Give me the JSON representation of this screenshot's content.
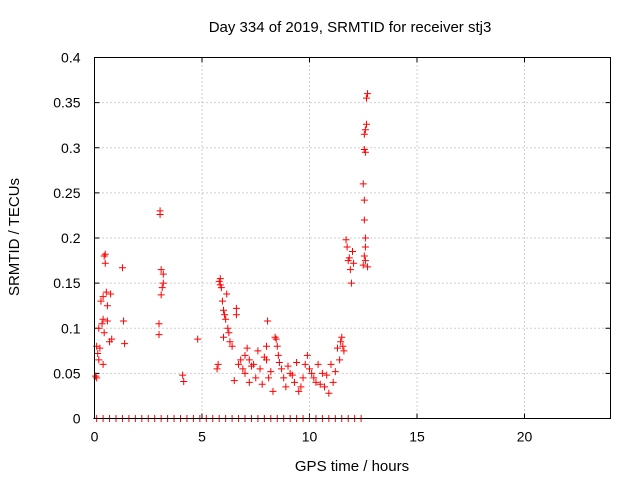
{
  "chart_data": {
    "type": "scatter",
    "title": "Day 334 of 2019, SRMTID for receiver stj3",
    "xlabel": "GPS time / hours",
    "ylabel": "SRMTID / TECUs",
    "xlim": [
      0,
      24
    ],
    "ylim": [
      0,
      0.4
    ],
    "grid": true,
    "marker": "+",
    "color": "#ff0000",
    "xticks": [
      0,
      5,
      10,
      15,
      20
    ],
    "yticks": [
      0,
      0.05,
      0.1,
      0.15,
      0.2,
      0.25,
      0.3,
      0.35,
      0.4
    ],
    "xtick_labels": [
      "0",
      "5",
      "10",
      "15",
      "20"
    ],
    "ytick_labels": [
      "0",
      "0.05",
      "0.1",
      "0.15",
      "0.2",
      "0.25",
      "0.3",
      "0.35",
      "0.4"
    ],
    "series": [
      {
        "name": "SRMTID",
        "points": [
          [
            0.05,
            0.047
          ],
          [
            0.1,
            0.045
          ],
          [
            0.1,
            0.08
          ],
          [
            0.15,
            0.072
          ],
          [
            0.2,
            0.065
          ],
          [
            0.2,
            0.1
          ],
          [
            0.25,
            0.078
          ],
          [
            0.3,
            0.13
          ],
          [
            0.35,
            0.105
          ],
          [
            0.4,
            0.11
          ],
          [
            0.4,
            0.135
          ],
          [
            0.45,
            0.095
          ],
          [
            0.45,
            0.18
          ],
          [
            0.5,
            0.182
          ],
          [
            0.5,
            0.172
          ],
          [
            0.55,
            0.14
          ],
          [
            0.6,
            0.108
          ],
          [
            0.6,
            0.125
          ],
          [
            0.7,
            0.085
          ],
          [
            0.75,
            0.138
          ],
          [
            0.8,
            0.088
          ],
          [
            0.4,
            0.06
          ],
          [
            1.3,
            0.167
          ],
          [
            1.35,
            0.108
          ],
          [
            1.4,
            0.083
          ],
          [
            3.0,
            0.105
          ],
          [
            3.0,
            0.093
          ],
          [
            3.05,
            0.23
          ],
          [
            3.05,
            0.226
          ],
          [
            3.1,
            0.137
          ],
          [
            3.1,
            0.165
          ],
          [
            3.15,
            0.145
          ],
          [
            3.2,
            0.16
          ],
          [
            3.2,
            0.15
          ],
          [
            4.1,
            0.048
          ],
          [
            4.15,
            0.041
          ],
          [
            4.8,
            0.088
          ],
          [
            5.7,
            0.055
          ],
          [
            5.75,
            0.06
          ],
          [
            5.8,
            0.152
          ],
          [
            5.85,
            0.155
          ],
          [
            5.85,
            0.148
          ],
          [
            5.9,
            0.145
          ],
          [
            5.95,
            0.13
          ],
          [
            6.0,
            0.12
          ],
          [
            6.0,
            0.09
          ],
          [
            6.05,
            0.115
          ],
          [
            6.1,
            0.11
          ],
          [
            6.15,
            0.138
          ],
          [
            6.2,
            0.1
          ],
          [
            6.25,
            0.095
          ],
          [
            6.3,
            0.085
          ],
          [
            6.4,
            0.08
          ],
          [
            6.5,
            0.042
          ],
          [
            6.6,
            0.115
          ],
          [
            6.6,
            0.122
          ],
          [
            6.7,
            0.06
          ],
          [
            6.8,
            0.065
          ],
          [
            6.9,
            0.055
          ],
          [
            7.0,
            0.07
          ],
          [
            7.0,
            0.05
          ],
          [
            7.1,
            0.078
          ],
          [
            7.2,
            0.065
          ],
          [
            7.2,
            0.04
          ],
          [
            7.3,
            0.058
          ],
          [
            7.4,
            0.06
          ],
          [
            7.5,
            0.045
          ],
          [
            7.6,
            0.075
          ],
          [
            7.7,
            0.055
          ],
          [
            7.8,
            0.038
          ],
          [
            7.9,
            0.068
          ],
          [
            8.0,
            0.065
          ],
          [
            8.0,
            0.08
          ],
          [
            8.05,
            0.108
          ],
          [
            8.1,
            0.045
          ],
          [
            8.2,
            0.052
          ],
          [
            8.3,
            0.03
          ],
          [
            8.4,
            0.09
          ],
          [
            8.45,
            0.088
          ],
          [
            8.5,
            0.08
          ],
          [
            8.55,
            0.07
          ],
          [
            8.6,
            0.062
          ],
          [
            8.7,
            0.055
          ],
          [
            8.8,
            0.045
          ],
          [
            8.9,
            0.035
          ],
          [
            9.0,
            0.058
          ],
          [
            9.1,
            0.05
          ],
          [
            9.2,
            0.048
          ],
          [
            9.3,
            0.04
          ],
          [
            9.4,
            0.062
          ],
          [
            9.5,
            0.03
          ],
          [
            9.6,
            0.035
          ],
          [
            9.7,
            0.045
          ],
          [
            9.8,
            0.06
          ],
          [
            9.9,
            0.07
          ],
          [
            10.0,
            0.055
          ],
          [
            10.1,
            0.05
          ],
          [
            10.2,
            0.045
          ],
          [
            10.3,
            0.04
          ],
          [
            10.4,
            0.06
          ],
          [
            10.5,
            0.038
          ],
          [
            10.6,
            0.05
          ],
          [
            10.7,
            0.035
          ],
          [
            10.8,
            0.048
          ],
          [
            10.9,
            0.028
          ],
          [
            11.0,
            0.06
          ],
          [
            11.1,
            0.04
          ],
          [
            11.2,
            0.052
          ],
          [
            11.3,
            0.078
          ],
          [
            11.4,
            0.065
          ],
          [
            11.45,
            0.085
          ],
          [
            11.5,
            0.09
          ],
          [
            11.55,
            0.08
          ],
          [
            11.6,
            0.075
          ],
          [
            11.7,
            0.198
          ],
          [
            11.75,
            0.19
          ],
          [
            11.8,
            0.175
          ],
          [
            11.85,
            0.178
          ],
          [
            11.9,
            0.165
          ],
          [
            11.95,
            0.15
          ],
          [
            12.0,
            0.185
          ],
          [
            12.05,
            0.172
          ],
          [
            12.5,
            0.17
          ],
          [
            12.55,
            0.18
          ],
          [
            12.6,
            0.19
          ],
          [
            12.6,
            0.2
          ],
          [
            12.6,
            0.175
          ],
          [
            12.55,
            0.22
          ],
          [
            12.5,
            0.26
          ],
          [
            12.55,
            0.242
          ],
          [
            12.55,
            0.298
          ],
          [
            12.6,
            0.295
          ],
          [
            12.55,
            0.315
          ],
          [
            12.6,
            0.32
          ],
          [
            12.65,
            0.326
          ],
          [
            12.65,
            0.355
          ],
          [
            12.7,
            0.36
          ],
          [
            12.7,
            0.168
          ],
          [
            0.1,
            0
          ],
          [
            0.4,
            0
          ],
          [
            0.7,
            0
          ],
          [
            1.0,
            0
          ],
          [
            1.3,
            0
          ],
          [
            1.6,
            0
          ],
          [
            1.9,
            0
          ],
          [
            2.2,
            0
          ],
          [
            2.5,
            0
          ],
          [
            2.8,
            0
          ],
          [
            3.1,
            0
          ],
          [
            3.4,
            0
          ],
          [
            3.7,
            0
          ],
          [
            4.0,
            0
          ],
          [
            4.3,
            0
          ],
          [
            4.6,
            0
          ],
          [
            4.9,
            0
          ],
          [
            5.2,
            0
          ],
          [
            5.5,
            0
          ],
          [
            5.8,
            0
          ],
          [
            6.1,
            0
          ],
          [
            6.4,
            0
          ],
          [
            6.7,
            0
          ],
          [
            7.0,
            0
          ],
          [
            7.3,
            0
          ],
          [
            7.6,
            0
          ],
          [
            7.9,
            0
          ],
          [
            8.2,
            0
          ],
          [
            8.5,
            0
          ],
          [
            8.8,
            0
          ],
          [
            9.1,
            0
          ],
          [
            9.4,
            0
          ],
          [
            9.7,
            0
          ],
          [
            10.0,
            0
          ],
          [
            10.3,
            0
          ],
          [
            10.6,
            0
          ],
          [
            10.9,
            0
          ],
          [
            11.2,
            0
          ],
          [
            11.5,
            0
          ],
          [
            11.8,
            0
          ],
          [
            12.1,
            0
          ],
          [
            12.4,
            0
          ]
        ]
      }
    ]
  }
}
